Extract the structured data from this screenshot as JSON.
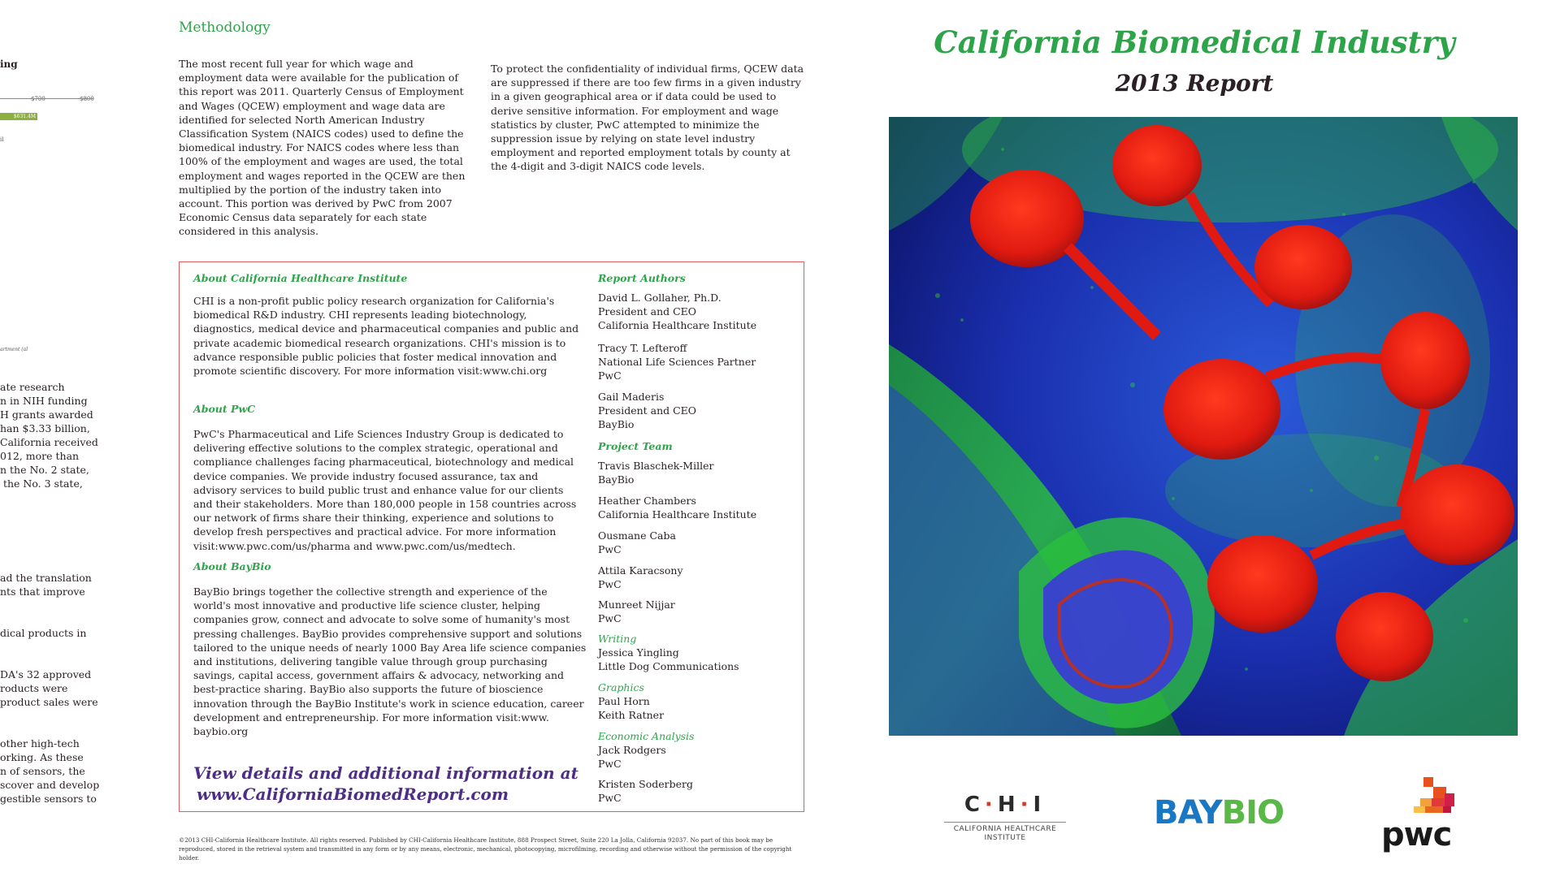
{
  "left_page": {
    "chart_title_fragment": "ing",
    "axis_labels": [
      "$700",
      "$800"
    ],
    "bar_label": "$631.4M",
    "tick_fragment": "il",
    "source_fragment": "artment (al",
    "text_fragments": [
      "ate research",
      "n in NIH funding",
      "H grants awarded",
      "han $3.33 billion,",
      "California received",
      "012, more than",
      "n the No. 2 state,",
      " the No. 3 state,",
      "ad the translation",
      "nts that improve",
      "dical products in",
      "DA's 32 approved",
      "roducts were",
      "product sales were",
      "other high-tech",
      "orking. As these",
      "n of sensors, the",
      "scover and develop",
      "gestible sensors to"
    ]
  },
  "methodology": {
    "heading": "Methodology",
    "col1": "The most recent full year for which wage and employment data were available for the publication of this report was 2011. Quarterly Census of Employment and Wages (QCEW) employment and wage data are identified for selected  North American Industry Classification System (NAICS codes) used to define the biomedical industry. For NAICS codes where less than 100% of the employment and wages are used, the total employment and wages reported in the QCEW are then multiplied by the portion of the industry taken into account. This portion was derived by PwC from 2007 Economic Census data separately for each state considered in this analysis.",
    "col2": "To protect the confidentiality of individual firms, QCEW data are suppressed if there are too few firms in a given industry in a given geographical area or if data could be used to derive sensitive information.  For employment and wage statistics by cluster, PwC attempted to minimize the suppression issue by relying on state level industry employment and reported employment totals by county at the 4-digit and 3-digit NAICS code levels."
  },
  "about": {
    "chi_heading": "About California Healthcare Institute",
    "chi_text": "CHI is a non-profit public policy research organization for California's biomedical R&D industry. CHI represents leading biotechnology, diagnostics, medical device and pharmaceutical companies and public and private academic biomedical research organizations. CHI's mission is to advance responsible public policies that foster medical innovation and promote scientific discovery. For more information visit:www.chi.org",
    "pwc_heading": "About PwC",
    "pwc_text": "PwC's Pharmaceutical and Life Sciences Industry Group is dedicated to delivering effective solutions to the complex strategic, operational and compliance challenges facing pharmaceutical, biotechnology and medical device companies. We provide industry focused assurance, tax and advisory services to build public trust and enhance value for our clients and their stakeholders. More than 180,000 people in 158 countries across our network of firms share their thinking, experience and solutions to develop fresh perspectives and practical advice.  For more information visit:www.pwc.com/us/pharma and www.pwc.com/us/medtech.",
    "baybio_heading": "About BayBio",
    "baybio_text": "BayBio brings together the collective strength and experience of the world's most innovative and productive life science cluster, helping companies grow, connect and advocate to solve some of humanity's most pressing challenges.  BayBio provides comprehensive support and solutions tailored to the unique needs of nearly 1000 Bay Area life science companies and institutions, delivering tangible value through group purchasing savings, capital access, government affairs & advocacy, networking and best-practice sharing. BayBio also supports the future of bioscience innovation through the BayBio Institute's work in science education, career development and entrepreneurship. For more information visit:www. baybio.org",
    "cta_line1": "View details and additional information at",
    "cta_line2": "www.CaliforniaBiomedReport.com"
  },
  "credits": {
    "authors_heading": "Report Authors",
    "authors": [
      {
        "name": "David L. Gollaher, Ph.D.",
        "l2": "President and CEO",
        "l3": "California Healthcare Institute"
      },
      {
        "name": "Tracy T. Lefteroff",
        "l2": "National Life Sciences Partner",
        "l3": "PwC"
      },
      {
        "name": "Gail Maderis",
        "l2": "President and CEO",
        "l3": "BayBio"
      }
    ],
    "team_heading": "Project Team",
    "team": [
      {
        "name": "Travis Blaschek-Miller",
        "org": "BayBio"
      },
      {
        "name": "Heather Chambers",
        "org": "California Healthcare Institute"
      },
      {
        "name": "Ousmane Caba",
        "org": "PwC"
      },
      {
        "name": "Attila Karacsony",
        "org": "PwC"
      },
      {
        "name": "Munreet Nijjar",
        "org": "PwC"
      }
    ],
    "writing_heading": "Writing",
    "writing": {
      "name": "Jessica Yingling",
      "org": "Little Dog Communications"
    },
    "graphics_heading": "Graphics",
    "graphics": [
      "Paul Horn",
      "Keith Ratner"
    ],
    "econ_heading": "Economic Analysis",
    "econ": [
      {
        "name": "Jack Rodgers",
        "org": "PwC"
      },
      {
        "name": "Kristen Soderberg",
        "org": "PwC"
      }
    ]
  },
  "footer": "©2013 CHI-California Healthcare Institute. All rights reserved. Published by CHI-California Healthcare Institute, 888 Prospect Street, Suite 220 La Jolla, California 92037. No part of this book may be reproduced, stored in the retrieval system and transmitted in any form or by any means, electronic, mechanical, photocopying, microfilming, recording and otherwise without the permission of the copyright holder.",
  "cover": {
    "title": "California Biomedical Industry",
    "subtitle": "2013 Report"
  },
  "logos": {
    "chi_letters": [
      "C",
      "H",
      "I"
    ],
    "chi_sub_line1": "CALIFORNIA HEALTHCARE",
    "chi_sub_line2": "INSTITUTE",
    "baybio_a": "BAY",
    "baybio_b": "BIO",
    "pwc": "pwc"
  },
  "colors": {
    "accent_green": "#2ea44a",
    "box_border": "#e25a5a",
    "cta_purple": "#4d2d86",
    "baybio_blue": "#1a78c2",
    "baybio_green": "#5ab848"
  }
}
